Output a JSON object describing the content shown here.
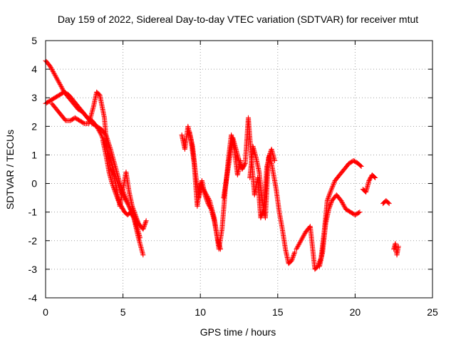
{
  "chart_data": {
    "type": "scatter",
    "title": "Day 159 of 2022, Sidereal Day-to-day VTEC variation (SDTVAR) for receiver mtut",
    "xlabel": "GPS time / hours",
    "ylabel": "SDTVAR / TECUs",
    "xlim": [
      0,
      25
    ],
    "ylim": [
      -4,
      5
    ],
    "xticks": [
      0,
      5,
      10,
      15,
      20,
      25
    ],
    "yticks": [
      -4,
      -3,
      -2,
      -1,
      0,
      1,
      2,
      3,
      4,
      5
    ],
    "grid": true,
    "marker": "plus",
    "color": "#ff0000",
    "series": [
      {
        "name": "SDTVAR",
        "segments": [
          {
            "x": [
              0.0,
              0.3,
              0.6,
              0.9,
              1.2,
              1.5,
              1.8,
              2.1,
              2.4,
              2.7,
              3.0,
              3.3,
              3.6,
              3.9,
              4.2,
              4.5,
              4.8,
              5.1,
              5.4,
              5.7,
              6.0,
              6.3,
              6.5
            ],
            "y": [
              4.3,
              4.1,
              3.8,
              3.5,
              3.2,
              3.0,
              2.8,
              2.6,
              2.5,
              2.3,
              2.2,
              2.0,
              1.7,
              1.3,
              0.8,
              0.3,
              -0.2,
              -0.5,
              -0.8,
              -1.1,
              -1.4,
              -1.6,
              -1.3
            ]
          },
          {
            "x": [
              0.0,
              0.3,
              0.6,
              0.9,
              1.2,
              1.5,
              1.8,
              2.1,
              2.4,
              2.7,
              3.0,
              3.3,
              3.6,
              3.9,
              4.2,
              4.5,
              4.8,
              5.1,
              5.4,
              5.7,
              6.0,
              6.3
            ],
            "y": [
              2.8,
              2.9,
              3.0,
              3.1,
              3.2,
              3.1,
              2.9,
              2.7,
              2.5,
              2.3,
              2.1,
              2.0,
              1.9,
              1.7,
              1.2,
              0.6,
              0.0,
              -0.4,
              -0.8,
              -1.2,
              -1.9,
              -2.5
            ]
          },
          {
            "x": [
              0.4,
              0.7,
              1.0,
              1.3,
              1.6,
              1.9,
              2.2,
              2.5,
              2.8,
              3.1,
              3.3,
              3.5,
              3.8,
              4.0,
              4.2,
              4.4,
              4.6,
              4.8,
              5.0,
              5.2,
              5.4,
              5.6,
              5.8,
              6.0
            ],
            "y": [
              2.8,
              2.6,
              2.4,
              2.2,
              2.2,
              2.3,
              2.2,
              2.1,
              2.1,
              2.7,
              3.2,
              3.1,
              2.3,
              1.0,
              0.5,
              0.3,
              -0.2,
              -0.8,
              -0.2,
              0.4,
              -0.3,
              -0.8,
              -1.1,
              -1.4
            ]
          },
          {
            "x": [
              3.7,
              3.9,
              4.1,
              4.3,
              4.5,
              4.7,
              4.9,
              5.1,
              5.3,
              5.5,
              5.7,
              5.9,
              6.1
            ],
            "y": [
              1.5,
              1.0,
              0.4,
              0.0,
              -0.3,
              -0.6,
              -0.8,
              -1.0,
              -1.1,
              -1.0,
              -1.2,
              -1.5,
              -1.9
            ]
          },
          {
            "x": [
              8.8,
              9.0,
              9.2,
              9.4,
              9.6,
              9.8,
              10.0,
              10.3,
              10.6,
              10.9,
              11.2,
              11.4,
              11.6,
              11.8,
              12.0,
              12.2,
              12.4,
              12.6
            ],
            "y": [
              1.7,
              1.2,
              2.0,
              1.5,
              0.7,
              -0.8,
              0.0,
              -0.3,
              -0.6,
              -1.2,
              -2.3,
              -1.6,
              -0.3,
              0.8,
              1.7,
              1.2,
              0.3,
              0.8
            ]
          },
          {
            "x": [
              9.3,
              9.5,
              9.7,
              9.9,
              10.1,
              10.3,
              10.5,
              10.7,
              10.9,
              11.1,
              11.3
            ],
            "y": [
              1.8,
              1.3,
              0.3,
              -0.5,
              0.1,
              -0.4,
              -0.7,
              -0.9,
              -1.3,
              -1.9,
              -2.3
            ]
          },
          {
            "x": [
              11.5,
              11.7,
              11.9,
              12.1,
              12.3,
              12.5,
              12.7,
              12.9,
              13.1,
              13.3,
              13.5,
              13.7,
              13.9,
              14.1,
              14.3,
              14.5,
              14.7,
              14.9,
              15.1,
              15.3,
              15.5,
              15.7,
              15.9,
              16.1
            ],
            "y": [
              -0.5,
              0.2,
              0.9,
              1.6,
              1.2,
              0.8,
              0.5,
              0.7,
              2.3,
              0.9,
              -0.4,
              0.2,
              -1.2,
              -0.9,
              0.6,
              1.0,
              0.4,
              -0.2,
              -1.0,
              -1.6,
              -2.3,
              -2.8,
              -2.7,
              -2.4
            ]
          },
          {
            "x": [
              13.2,
              13.4,
              13.6,
              13.8,
              14.0,
              14.2,
              14.4,
              14.6,
              14.8
            ],
            "y": [
              0.2,
              1.3,
              0.9,
              0.4,
              -0.6,
              -1.2,
              0.9,
              1.2,
              0.8
            ]
          },
          {
            "x": [
              16.2,
              16.5,
              16.8,
              17.1,
              17.4,
              17.6,
              17.8,
              18.0,
              18.2,
              18.4,
              18.7,
              19.0,
              19.3,
              19.6,
              19.9,
              20.2,
              20.4
            ],
            "y": [
              -2.3,
              -2.0,
              -1.7,
              -1.5,
              -3.0,
              -2.9,
              -2.6,
              -1.7,
              -0.6,
              -0.3,
              0.1,
              0.3,
              0.5,
              0.7,
              0.8,
              0.7,
              0.6
            ]
          },
          {
            "x": [
              17.7,
              17.9,
              18.1,
              18.3,
              18.5,
              18.8,
              19.1,
              19.4,
              19.7,
              20.0,
              20.3
            ],
            "y": [
              -2.9,
              -2.4,
              -1.4,
              -0.9,
              -0.6,
              -0.4,
              -0.6,
              -0.9,
              -1.0,
              -1.1,
              -1.0
            ]
          },
          {
            "x": [
              20.5,
              20.7,
              20.9,
              21.1,
              21.3
            ],
            "y": [
              -0.2,
              -0.3,
              0.1,
              0.3,
              0.2
            ]
          },
          {
            "x": [
              21.8,
              22.0,
              22.2
            ],
            "y": [
              -0.7,
              -0.6,
              -0.7
            ]
          },
          {
            "x": [
              22.5,
              22.6,
              22.7,
              22.8
            ],
            "y": [
              -2.3,
              -2.1,
              -2.5,
              -2.2
            ]
          }
        ]
      }
    ]
  }
}
